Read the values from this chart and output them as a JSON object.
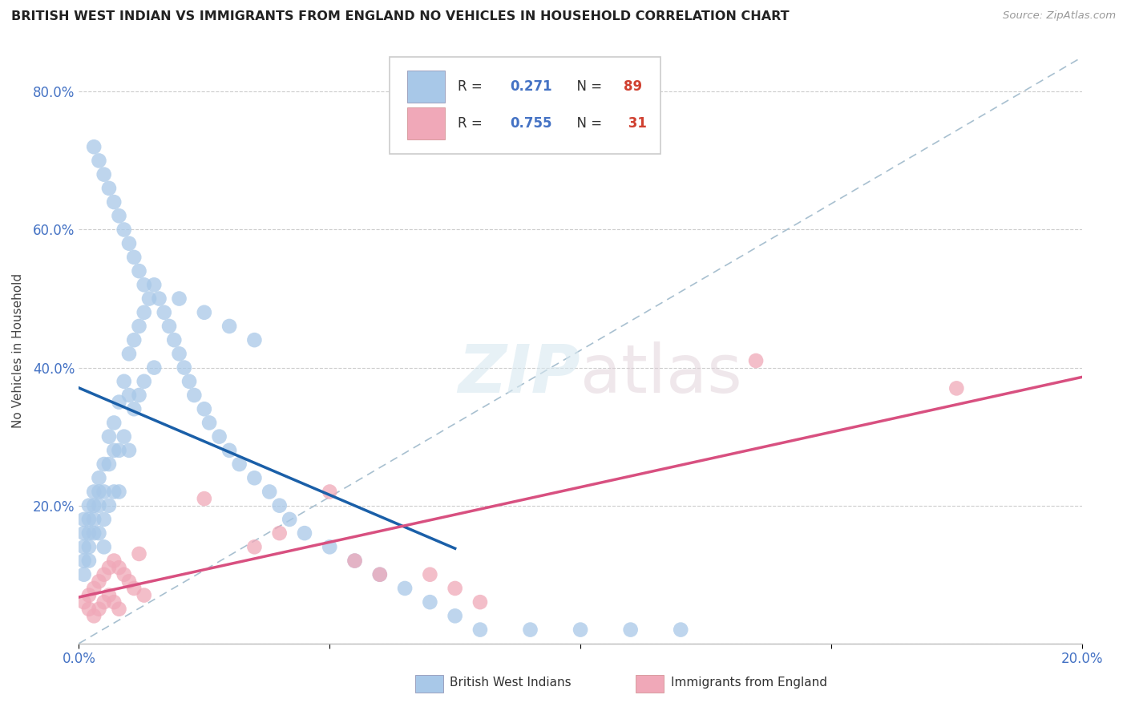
{
  "title": "BRITISH WEST INDIAN VS IMMIGRANTS FROM ENGLAND NO VEHICLES IN HOUSEHOLD CORRELATION CHART",
  "source": "Source: ZipAtlas.com",
  "ylabel": "No Vehicles in Household",
  "xlim": [
    0.0,
    0.2
  ],
  "ylim": [
    0.0,
    0.85
  ],
  "blue_color": "#A8C8E8",
  "pink_color": "#F0A8B8",
  "blue_line_color": "#1A5FA8",
  "pink_line_color": "#D85080",
  "dashed_line_color": "#A8C0D0",
  "watermark_zip": "ZIP",
  "watermark_atlas": "atlas",
  "bwi_x": [
    0.001,
    0.001,
    0.001,
    0.001,
    0.001,
    0.002,
    0.002,
    0.002,
    0.002,
    0.002,
    0.003,
    0.003,
    0.003,
    0.003,
    0.004,
    0.004,
    0.004,
    0.004,
    0.005,
    0.005,
    0.005,
    0.005,
    0.006,
    0.006,
    0.006,
    0.007,
    0.007,
    0.007,
    0.008,
    0.008,
    0.008,
    0.009,
    0.009,
    0.01,
    0.01,
    0.01,
    0.011,
    0.011,
    0.012,
    0.012,
    0.013,
    0.013,
    0.014,
    0.015,
    0.015,
    0.016,
    0.017,
    0.018,
    0.019,
    0.02,
    0.021,
    0.022,
    0.023,
    0.025,
    0.026,
    0.028,
    0.03,
    0.032,
    0.035,
    0.038,
    0.04,
    0.042,
    0.045,
    0.05,
    0.055,
    0.06,
    0.065,
    0.07,
    0.075,
    0.08,
    0.09,
    0.1,
    0.11,
    0.12,
    0.003,
    0.004,
    0.005,
    0.006,
    0.007,
    0.008,
    0.009,
    0.01,
    0.011,
    0.012,
    0.013,
    0.02,
    0.025,
    0.03,
    0.035
  ],
  "bwi_y": [
    0.18,
    0.16,
    0.14,
    0.12,
    0.1,
    0.2,
    0.18,
    0.16,
    0.14,
    0.12,
    0.22,
    0.2,
    0.18,
    0.16,
    0.24,
    0.22,
    0.2,
    0.16,
    0.26,
    0.22,
    0.18,
    0.14,
    0.3,
    0.26,
    0.2,
    0.32,
    0.28,
    0.22,
    0.35,
    0.28,
    0.22,
    0.38,
    0.3,
    0.42,
    0.36,
    0.28,
    0.44,
    0.34,
    0.46,
    0.36,
    0.48,
    0.38,
    0.5,
    0.52,
    0.4,
    0.5,
    0.48,
    0.46,
    0.44,
    0.42,
    0.4,
    0.38,
    0.36,
    0.34,
    0.32,
    0.3,
    0.28,
    0.26,
    0.24,
    0.22,
    0.2,
    0.18,
    0.16,
    0.14,
    0.12,
    0.1,
    0.08,
    0.06,
    0.04,
    0.02,
    0.02,
    0.02,
    0.02,
    0.02,
    0.72,
    0.7,
    0.68,
    0.66,
    0.64,
    0.62,
    0.6,
    0.58,
    0.56,
    0.54,
    0.52,
    0.5,
    0.48,
    0.46,
    0.44
  ],
  "eng_x": [
    0.001,
    0.002,
    0.002,
    0.003,
    0.003,
    0.004,
    0.004,
    0.005,
    0.005,
    0.006,
    0.006,
    0.007,
    0.007,
    0.008,
    0.008,
    0.009,
    0.01,
    0.011,
    0.012,
    0.013,
    0.025,
    0.035,
    0.04,
    0.05,
    0.055,
    0.06,
    0.07,
    0.075,
    0.08,
    0.135,
    0.175
  ],
  "eng_y": [
    0.06,
    0.07,
    0.05,
    0.08,
    0.04,
    0.09,
    0.05,
    0.1,
    0.06,
    0.11,
    0.07,
    0.12,
    0.06,
    0.11,
    0.05,
    0.1,
    0.09,
    0.08,
    0.13,
    0.07,
    0.21,
    0.14,
    0.16,
    0.22,
    0.12,
    0.1,
    0.1,
    0.08,
    0.06,
    0.41,
    0.37
  ]
}
